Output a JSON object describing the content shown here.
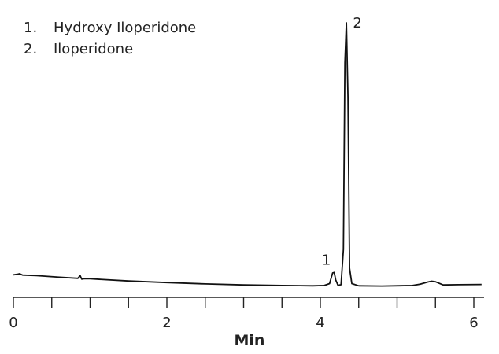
{
  "chart_data": {
    "type": "line",
    "title": "",
    "xlabel": "Min",
    "ylabel": "",
    "xlim": [
      0,
      6.1
    ],
    "ylim": [
      0,
      100
    ],
    "x_ticks": [
      0,
      2,
      4,
      6
    ],
    "grid": false,
    "legend_position": "top-left",
    "legend": [
      {
        "number": "1.",
        "name": "Hydroxy Iloperidone"
      },
      {
        "number": "2.",
        "name": "Iloperidone"
      }
    ],
    "series": [
      {
        "x": [
          0.0,
          0.05,
          0.08,
          0.12,
          0.3,
          0.6,
          0.84,
          0.87,
          0.89,
          0.92,
          1.0,
          1.5,
          2.0,
          2.5,
          3.0,
          3.5,
          3.9,
          4.05,
          4.12,
          4.16,
          4.18,
          4.2,
          4.23,
          4.27,
          4.3,
          4.32,
          4.34,
          4.36,
          4.38,
          4.41,
          4.5,
          4.8,
          5.2,
          5.3,
          5.4,
          5.45,
          5.5,
          5.6,
          5.8,
          6.1
        ],
        "y": [
          5.5,
          5.7,
          5.9,
          5.4,
          5.2,
          4.6,
          4.2,
          5.2,
          3.9,
          4.0,
          4.0,
          3.2,
          2.6,
          2.1,
          1.7,
          1.5,
          1.4,
          1.5,
          2.2,
          6.2,
          6.4,
          3.6,
          1.6,
          1.8,
          15.0,
          85.0,
          100.0,
          72.0,
          8.0,
          2.2,
          1.4,
          1.3,
          1.5,
          2.0,
          2.8,
          3.1,
          2.9,
          1.7,
          1.8,
          1.9
        ]
      }
    ],
    "annotations": [
      {
        "label": "1",
        "x": 4.18,
        "y": 6.4
      },
      {
        "label": "2",
        "x": 4.34,
        "y": 100.0
      }
    ]
  }
}
